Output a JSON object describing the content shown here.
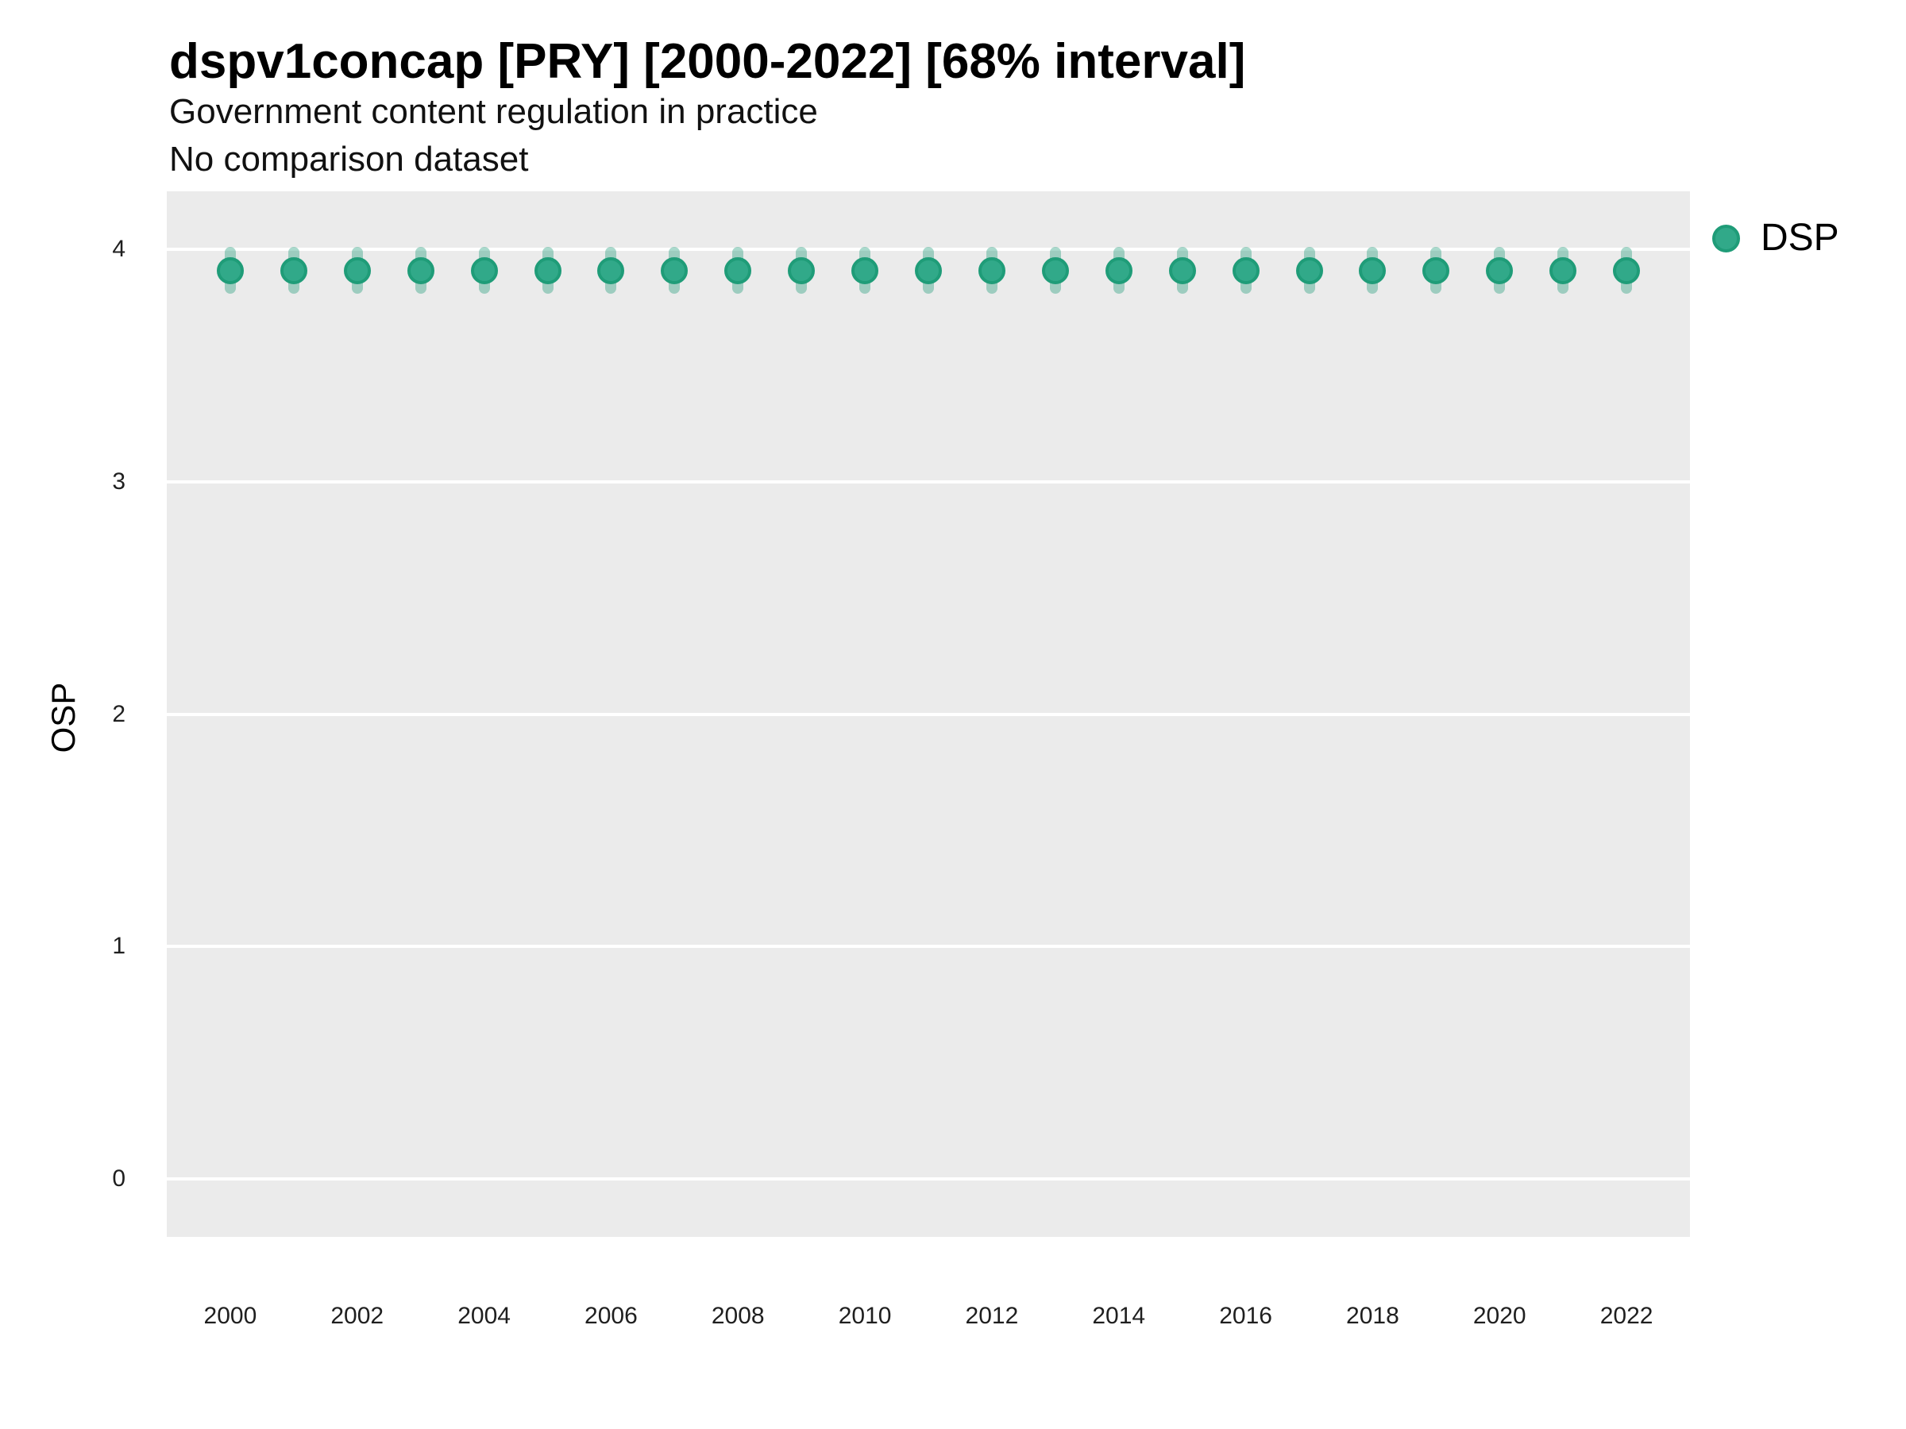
{
  "header": {
    "title": "dspv1concap [PRY] [2000-2022] [68% interval]",
    "subtitle_line1": "Government content regulation in practice",
    "subtitle_line2": "No comparison dataset"
  },
  "legend": {
    "label": "DSP"
  },
  "colors": {
    "panel_bg": "#ebebeb",
    "gridline": "#ffffff",
    "point_fill": "#31a989",
    "point_stroke": "#1f9c78",
    "interval_bar": "rgba(31, 156, 120, 0.38)",
    "tick_text": "#1f1f1f"
  },
  "chart_data": {
    "type": "scatter",
    "title": "dspv1concap [PRY] [2000-2022] [68% interval]",
    "subtitle": [
      "Government content regulation in practice",
      "No comparison dataset"
    ],
    "xlabel": "",
    "ylabel": "OSP",
    "legend_position": "right",
    "grid": "major-horizontal-white-on-gray",
    "interval_note": "68% interval shown as vertical bars",
    "xlim": [
      1999,
      2023
    ],
    "ylim": [
      -0.25,
      4.25
    ],
    "x_ticks": [
      2000,
      2002,
      2004,
      2006,
      2008,
      2010,
      2012,
      2014,
      2016,
      2018,
      2020,
      2022
    ],
    "y_ticks": [
      0,
      1,
      2,
      3,
      4
    ],
    "series": [
      {
        "name": "DSP",
        "points": [
          {
            "year": 2000,
            "value": 3.91,
            "low": 3.81,
            "high": 4.01
          },
          {
            "year": 2001,
            "value": 3.91,
            "low": 3.81,
            "high": 4.01
          },
          {
            "year": 2002,
            "value": 3.91,
            "low": 3.81,
            "high": 4.01
          },
          {
            "year": 2003,
            "value": 3.91,
            "low": 3.81,
            "high": 4.01
          },
          {
            "year": 2004,
            "value": 3.91,
            "low": 3.81,
            "high": 4.01
          },
          {
            "year": 2005,
            "value": 3.91,
            "low": 3.81,
            "high": 4.01
          },
          {
            "year": 2006,
            "value": 3.91,
            "low": 3.81,
            "high": 4.01
          },
          {
            "year": 2007,
            "value": 3.91,
            "low": 3.81,
            "high": 4.01
          },
          {
            "year": 2008,
            "value": 3.91,
            "low": 3.81,
            "high": 4.01
          },
          {
            "year": 2009,
            "value": 3.91,
            "low": 3.81,
            "high": 4.01
          },
          {
            "year": 2010,
            "value": 3.91,
            "low": 3.81,
            "high": 4.01
          },
          {
            "year": 2011,
            "value": 3.91,
            "low": 3.81,
            "high": 4.01
          },
          {
            "year": 2012,
            "value": 3.91,
            "low": 3.81,
            "high": 4.01
          },
          {
            "year": 2013,
            "value": 3.91,
            "low": 3.81,
            "high": 4.01
          },
          {
            "year": 2014,
            "value": 3.91,
            "low": 3.81,
            "high": 4.01
          },
          {
            "year": 2015,
            "value": 3.91,
            "low": 3.81,
            "high": 4.01
          },
          {
            "year": 2016,
            "value": 3.91,
            "low": 3.81,
            "high": 4.01
          },
          {
            "year": 2017,
            "value": 3.91,
            "low": 3.81,
            "high": 4.01
          },
          {
            "year": 2018,
            "value": 3.91,
            "low": 3.81,
            "high": 4.01
          },
          {
            "year": 2019,
            "value": 3.91,
            "low": 3.81,
            "high": 4.01
          },
          {
            "year": 2020,
            "value": 3.91,
            "low": 3.81,
            "high": 4.01
          },
          {
            "year": 2021,
            "value": 3.91,
            "low": 3.81,
            "high": 4.01
          },
          {
            "year": 2022,
            "value": 3.91,
            "low": 3.81,
            "high": 4.01
          }
        ]
      }
    ]
  }
}
